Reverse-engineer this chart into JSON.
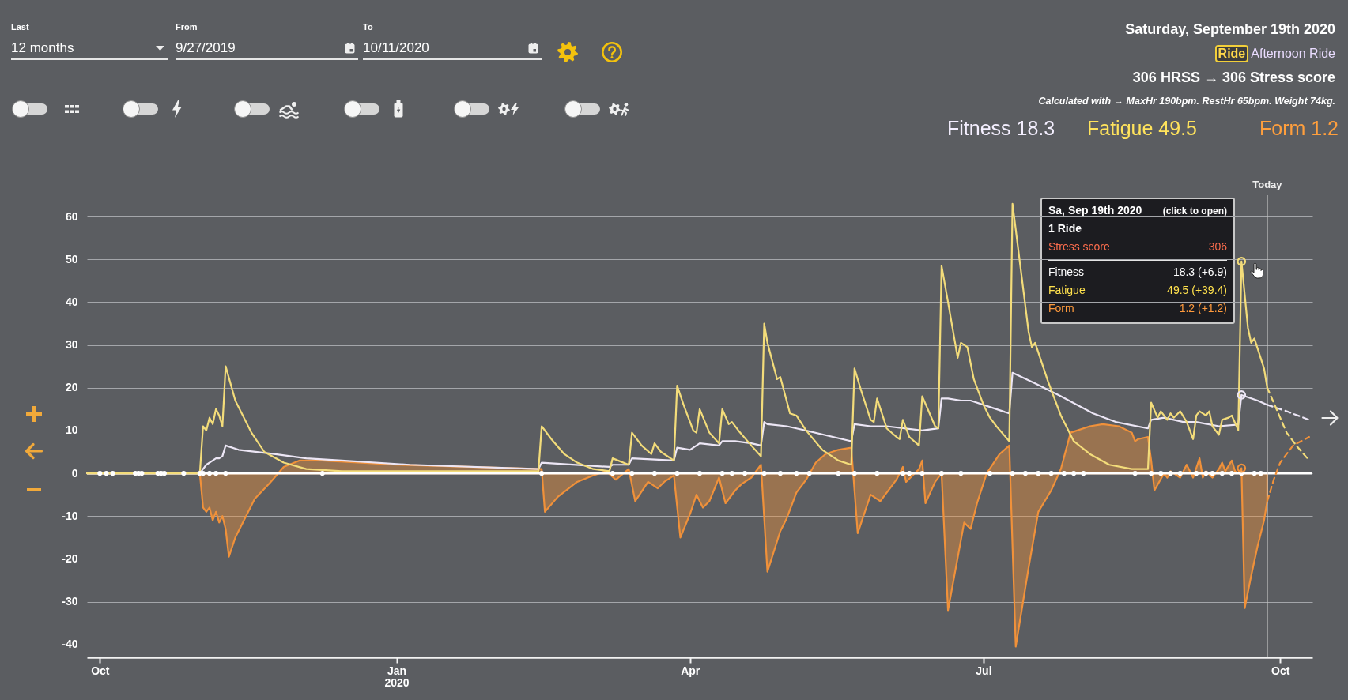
{
  "chart_data": {
    "type": "line",
    "xlim": [
      "2019-09-27",
      "2020-10-11"
    ],
    "ylim": [
      -43,
      65
    ],
    "xticks": [
      {
        "value": "2019-10-01",
        "label": "Oct"
      },
      {
        "value": "2020-01-01",
        "label": "Jan\n2020"
      },
      {
        "value": "2020-04-01",
        "label": "Apr"
      },
      {
        "value": "2020-07-01",
        "label": "Jul"
      },
      {
        "value": "2020-10-01",
        "label": "Oct"
      }
    ],
    "yticks": [
      -40,
      -30,
      -20,
      -10,
      0,
      10,
      20,
      30,
      40,
      50,
      60
    ],
    "grid": "y",
    "series": [
      {
        "type": "area",
        "color": "#f0913a",
        "x": [
          "2019-09-27",
          "2019-11-01",
          "2019-11-02",
          "2019-11-03",
          "2019-11-04",
          "2019-11-05",
          "2019-11-06",
          "2019-11-07",
          "2019-11-08",
          "2019-11-09",
          "2019-11-10",
          "2019-11-12",
          "2019-11-15",
          "2019-11-18",
          "2019-11-23",
          "2019-11-27",
          "2019-12-02",
          "2019-12-09",
          "2020-01-01",
          "2020-02-15",
          "2020-02-16",
          "2020-02-20",
          "2020-02-26",
          "2020-03-02",
          "2020-03-06",
          "2020-03-09",
          "2020-03-13",
          "2020-03-15",
          "2020-03-19",
          "2020-03-22",
          "2020-03-24",
          "2020-03-27",
          "2020-03-29",
          "2020-04-01",
          "2020-04-03",
          "2020-04-05",
          "2020-04-07",
          "2020-04-10",
          "2020-04-12",
          "2020-04-15",
          "2020-04-17",
          "2020-04-20",
          "2020-04-23",
          "2020-04-25",
          "2020-04-29",
          "2020-05-01",
          "2020-05-04",
          "2020-05-07",
          "2020-05-10",
          "2020-05-13",
          "2020-05-17",
          "2020-05-21",
          "2020-05-23",
          "2020-05-27",
          "2020-05-30",
          "2020-06-02",
          "2020-06-04",
          "2020-06-06",
          "2020-06-07",
          "2020-06-11",
          "2020-06-12",
          "2020-06-13",
          "2020-06-16",
          "2020-06-18",
          "2020-06-20",
          "2020-06-25",
          "2020-06-27",
          "2020-06-29",
          "2020-07-02",
          "2020-07-06",
          "2020-07-09",
          "2020-07-11",
          "2020-07-15",
          "2020-07-18",
          "2020-07-20",
          "2020-07-22",
          "2020-07-25",
          "2020-07-28",
          "2020-08-03",
          "2020-08-07",
          "2020-08-12",
          "2020-08-16",
          "2020-08-17",
          "2020-08-18",
          "2020-08-21",
          "2020-08-22",
          "2020-08-23",
          "2020-08-26",
          "2020-08-27",
          "2020-08-28",
          "2020-08-31",
          "2020-09-02",
          "2020-09-04",
          "2020-09-06",
          "2020-09-07",
          "2020-09-08",
          "2020-09-10",
          "2020-09-12",
          "2020-09-13",
          "2020-09-14",
          "2020-09-16",
          "2020-09-17",
          "2020-09-18",
          "2020-09-19",
          "2020-09-20",
          "2020-09-22",
          "2020-09-24",
          "2020-09-26",
          "2020-09-27"
        ],
        "values": [
          0,
          0,
          -8,
          -9,
          -8,
          -11,
          -9,
          -11.5,
          -10,
          -13,
          -19.5,
          -15,
          -10.5,
          -6,
          -2,
          1.5,
          3,
          3,
          2,
          1,
          -9,
          -5.5,
          -2,
          -0.5,
          0.5,
          -1.5,
          1,
          -6.5,
          -2,
          -3.5,
          -2,
          -0.5,
          -15,
          -9.5,
          -5,
          -8,
          -6.5,
          -1,
          -7,
          -4,
          -2.5,
          -1,
          2,
          -23,
          -13.5,
          -10.5,
          -4.5,
          -1.5,
          2.5,
          4.5,
          5.5,
          6,
          -14,
          -5,
          -6.5,
          -3.5,
          -1.5,
          1.5,
          -2,
          1,
          3,
          -7,
          -2,
          0,
          -32,
          -11.5,
          -13,
          -7,
          0,
          4.5,
          6.5,
          -40.5,
          -22,
          -9,
          -6.5,
          -4,
          1,
          9.5,
          11,
          11.5,
          11,
          9.5,
          7.5,
          8,
          8.5,
          3,
          -4,
          0,
          -1,
          0.5,
          -1,
          2,
          -1,
          3.5,
          -1,
          0.5,
          -1,
          1,
          2.5,
          0.5,
          3,
          0.5,
          0,
          1.2,
          -31.5,
          -24,
          -17,
          -11,
          -6.5
        ]
      },
      {
        "color": "#ece6f5",
        "x": [
          "2019-09-27",
          "2019-11-01",
          "2019-11-02",
          "2019-11-03",
          "2019-11-05",
          "2019-11-06",
          "2019-11-07",
          "2019-11-08",
          "2019-11-09",
          "2019-11-13",
          "2019-11-24",
          "2019-12-04",
          "2019-12-15",
          "2020-01-05",
          "2020-02-14",
          "2020-02-15",
          "2020-03-07",
          "2020-03-08",
          "2020-03-13",
          "2020-03-14",
          "2020-03-27",
          "2020-03-28",
          "2020-04-01",
          "2020-04-04",
          "2020-04-10",
          "2020-04-11",
          "2020-04-15",
          "2020-04-20",
          "2020-04-23",
          "2020-04-24",
          "2020-04-25",
          "2020-05-01",
          "2020-05-04",
          "2020-05-21",
          "2020-05-22",
          "2020-05-27",
          "2020-06-01",
          "2020-06-12",
          "2020-06-17",
          "2020-06-18",
          "2020-06-20",
          "2020-06-24",
          "2020-06-27",
          "2020-07-09",
          "2020-07-10",
          "2020-07-17",
          "2020-07-25",
          "2020-08-04",
          "2020-08-11",
          "2020-08-21",
          "2020-08-22",
          "2020-08-26",
          "2020-09-01",
          "2020-09-05",
          "2020-09-12",
          "2020-09-18",
          "2020-09-19",
          "2020-09-24",
          "2020-09-27"
        ],
        "values": [
          0,
          0,
          1,
          2,
          3,
          3.5,
          3.5,
          4,
          6.5,
          5.5,
          4.5,
          3.5,
          3,
          2,
          1,
          2.5,
          1.5,
          2,
          2,
          3.5,
          3,
          6,
          5.5,
          7,
          6.5,
          7.5,
          7.5,
          7,
          6.5,
          12,
          11.5,
          11,
          10.5,
          7.5,
          11.5,
          11,
          11,
          10,
          10.5,
          17.5,
          17.5,
          17,
          17,
          14,
          23.5,
          21,
          18,
          14,
          12,
          10.5,
          12.5,
          13,
          12,
          12,
          11,
          11.4,
          18.3,
          17,
          16
        ]
      },
      {
        "color": "#f3dc7a",
        "x": [
          "2019-09-27",
          "2019-11-01",
          "2019-11-02",
          "2019-11-03",
          "2019-11-04",
          "2019-11-05",
          "2019-11-06",
          "2019-11-07",
          "2019-11-08",
          "2019-11-09",
          "2019-11-12",
          "2019-11-17",
          "2019-11-21",
          "2019-11-27",
          "2019-12-04",
          "2019-12-15",
          "2020-02-14",
          "2020-02-15",
          "2020-02-18",
          "2020-02-22",
          "2020-02-26",
          "2020-03-02",
          "2020-03-07",
          "2020-03-08",
          "2020-03-13",
          "2020-03-14",
          "2020-03-17",
          "2020-03-20",
          "2020-03-21",
          "2020-03-23",
          "2020-03-27",
          "2020-03-28",
          "2020-03-30",
          "2020-04-02",
          "2020-04-03",
          "2020-04-04",
          "2020-04-07",
          "2020-04-10",
          "2020-04-11",
          "2020-04-13",
          "2020-04-14",
          "2020-04-16",
          "2020-04-20",
          "2020-04-23",
          "2020-04-24",
          "2020-04-25",
          "2020-04-28",
          "2020-04-29",
          "2020-05-02",
          "2020-05-04",
          "2020-05-07",
          "2020-05-12",
          "2020-05-17",
          "2020-05-21",
          "2020-05-22",
          "2020-05-24",
          "2020-05-27",
          "2020-05-28",
          "2020-05-29",
          "2020-06-01",
          "2020-06-04",
          "2020-06-05",
          "2020-06-06",
          "2020-06-08",
          "2020-06-11",
          "2020-06-12",
          "2020-06-16",
          "2020-06-17",
          "2020-06-18",
          "2020-06-20",
          "2020-06-23",
          "2020-06-24",
          "2020-06-26",
          "2020-06-28",
          "2020-07-01",
          "2020-07-03",
          "2020-07-05",
          "2020-07-09",
          "2020-07-10",
          "2020-07-15",
          "2020-07-16",
          "2020-07-17",
          "2020-07-21",
          "2020-07-25",
          "2020-07-29",
          "2020-08-03",
          "2020-08-09",
          "2020-08-16",
          "2020-08-21",
          "2020-08-22",
          "2020-08-24",
          "2020-08-25",
          "2020-08-27",
          "2020-08-28",
          "2020-08-29",
          "2020-08-31",
          "2020-09-02",
          "2020-09-04",
          "2020-09-05",
          "2020-09-06",
          "2020-09-08",
          "2020-09-09",
          "2020-09-10",
          "2020-09-12",
          "2020-09-13",
          "2020-09-15",
          "2020-09-16",
          "2020-09-18",
          "2020-09-19",
          "2020-09-21",
          "2020-09-22",
          "2020-09-23",
          "2020-09-26",
          "2020-09-27"
        ],
        "values": [
          0,
          0,
          11,
          10,
          13,
          11.5,
          15,
          13.5,
          11,
          25,
          17,
          9.5,
          5,
          2.5,
          1,
          0.5,
          0.5,
          11,
          8,
          4.5,
          2.5,
          1,
          0.5,
          3.5,
          2,
          9.5,
          6.5,
          4.5,
          7,
          5,
          3,
          20.5,
          16,
          10,
          9.5,
          15,
          9.5,
          7,
          15,
          11.5,
          12,
          10,
          6.5,
          4,
          35,
          30.5,
          22,
          22.5,
          14,
          13.5,
          10,
          5.5,
          3,
          2,
          24.5,
          19.5,
          12.5,
          12,
          17.5,
          10.5,
          8.5,
          8,
          12.5,
          8.5,
          6.5,
          18,
          11,
          10.5,
          48.5,
          40,
          27,
          30.5,
          29.5,
          22,
          16,
          13,
          11,
          7.5,
          63,
          33,
          29.5,
          30.5,
          21.5,
          13.5,
          7.5,
          4.5,
          2,
          1,
          1,
          16.5,
          13,
          14.5,
          12.5,
          14,
          13,
          14.5,
          12,
          8,
          13.5,
          14.5,
          13.5,
          14.5,
          11,
          9,
          12.5,
          13,
          13.5,
          10.1,
          49.5,
          34,
          30.5,
          31.5,
          24.5,
          20
        ]
      },
      {
        "line_style": "dashed",
        "color": "#ece6f5",
        "x": [
          "2020-09-27",
          "2020-10-03",
          "2020-10-10"
        ],
        "values": [
          16,
          14.5,
          12.5
        ]
      },
      {
        "line_style": "dashed",
        "color": "#f3dc7a",
        "x": [
          "2020-09-27",
          "2020-10-03",
          "2020-10-06",
          "2020-10-10"
        ],
        "values": [
          20,
          9.5,
          6.5,
          3
        ]
      },
      {
        "line_style": "dashed",
        "color": "#f0913a",
        "x": [
          "2020-09-27",
          "2020-09-29",
          "2020-10-01",
          "2020-10-05",
          "2020-10-10"
        ],
        "values": [
          -6.5,
          -1.5,
          2.5,
          6.5,
          8.5
        ]
      },
      {
        "type": "scatter",
        "marker": "circle",
        "color": "#ffffff",
        "x": [
          "2019-10-01",
          "2019-10-03",
          "2019-10-05",
          "2019-10-12",
          "2019-10-13",
          "2019-10-14",
          "2019-10-19",
          "2019-10-20",
          "2019-10-21",
          "2019-10-27",
          "2019-11-01",
          "2019-11-02",
          "2019-11-04",
          "2019-11-06",
          "2019-11-09",
          "2019-12-09",
          "2020-02-15",
          "2020-03-08",
          "2020-03-14",
          "2020-03-21",
          "2020-03-28",
          "2020-04-04",
          "2020-04-11",
          "2020-04-14",
          "2020-04-18",
          "2020-04-24",
          "2020-04-29",
          "2020-05-04",
          "2020-05-08",
          "2020-05-17",
          "2020-05-22",
          "2020-05-29",
          "2020-06-06",
          "2020-06-08",
          "2020-06-12",
          "2020-06-18",
          "2020-06-24",
          "2020-07-03",
          "2020-07-10",
          "2020-07-14",
          "2020-07-18",
          "2020-07-22",
          "2020-07-26",
          "2020-07-29",
          "2020-08-01",
          "2020-08-17",
          "2020-08-22",
          "2020-08-25",
          "2020-08-28",
          "2020-08-31",
          "2020-09-05",
          "2020-09-08",
          "2020-09-10",
          "2020-09-13",
          "2020-09-16",
          "2020-09-19",
          "2020-09-23",
          "2020-09-25"
        ],
        "values": [
          0,
          0,
          0,
          0,
          0,
          0,
          0,
          0,
          0,
          0,
          0,
          0,
          0,
          0,
          0,
          0,
          0,
          0,
          0,
          0,
          0,
          0,
          0,
          0,
          0,
          0,
          0,
          0,
          0,
          0,
          0,
          0,
          0,
          0,
          0,
          0,
          0,
          0,
          0,
          0,
          0,
          0,
          0,
          0,
          0,
          0,
          0,
          0,
          0,
          0,
          0,
          0,
          0,
          0,
          0,
          0,
          0,
          0
        ]
      },
      {
        "type": "scatter",
        "marker": "circle",
        "x": [
          "2020-09-19",
          "2020-09-19",
          "2020-09-19"
        ],
        "values": [
          18.3,
          49.5,
          1.2
        ],
        "colors": [
          "#ece6f5",
          "#f3dc7a",
          "#f0913a"
        ]
      }
    ],
    "ref_lines": [
      {
        "axis": "y",
        "value": 0,
        "color": "#ffffff"
      },
      {
        "axis": "x",
        "value": "2020-09-27",
        "label": "Today",
        "color": "#c4c4c4"
      }
    ],
    "annotations": [
      "Last",
      "12 months",
      "From",
      "9/27/2019",
      "To",
      "10/11/2020",
      "Saturday, September 19th 2020",
      "Ride",
      "Afternoon Ride",
      "306 HRSS → 306 Stress score",
      "Calculated with → MaxHr 190bpm. RestHr 65bpm. Weight 74kg.",
      "Fitness 18.3",
      "Fatigue 49.5",
      "Form 1.2",
      "Sa, Sep 19th 2020",
      "(click to open)",
      "1 Ride",
      "Stress score",
      "306",
      "Fitness",
      "18.3 (+6.9)",
      "Fatigue",
      "49.5 (+39.4)",
      "Form",
      "1.2 (+1.2)"
    ]
  }
}
